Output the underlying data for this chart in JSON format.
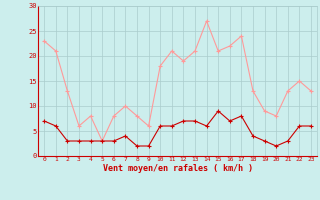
{
  "hours": [
    0,
    1,
    2,
    3,
    4,
    5,
    6,
    7,
    8,
    9,
    10,
    11,
    12,
    13,
    14,
    15,
    16,
    17,
    18,
    19,
    20,
    21,
    22,
    23
  ],
  "vent_moyen": [
    7,
    6,
    3,
    3,
    3,
    3,
    3,
    4,
    2,
    2,
    6,
    6,
    7,
    7,
    6,
    9,
    7,
    8,
    4,
    3,
    2,
    3,
    6,
    6
  ],
  "rafales": [
    23,
    21,
    13,
    6,
    8,
    3,
    8,
    10,
    8,
    6,
    18,
    21,
    19,
    21,
    27,
    21,
    22,
    24,
    13,
    9,
    8,
    13,
    15,
    13
  ],
  "bg_color": "#cceeed",
  "grid_color": "#aacccc",
  "line_color_moyen": "#cc0000",
  "line_color_rafales": "#ff9999",
  "xlabel": "Vent moyen/en rafales ( km/h )",
  "xlabel_color": "#cc0000",
  "ylim": [
    0,
    30
  ],
  "yticks": [
    0,
    5,
    10,
    15,
    20,
    25,
    30
  ],
  "xticks": [
    0,
    1,
    2,
    3,
    4,
    5,
    6,
    7,
    8,
    9,
    10,
    11,
    12,
    13,
    14,
    15,
    16,
    17,
    18,
    19,
    20,
    21,
    22,
    23
  ]
}
